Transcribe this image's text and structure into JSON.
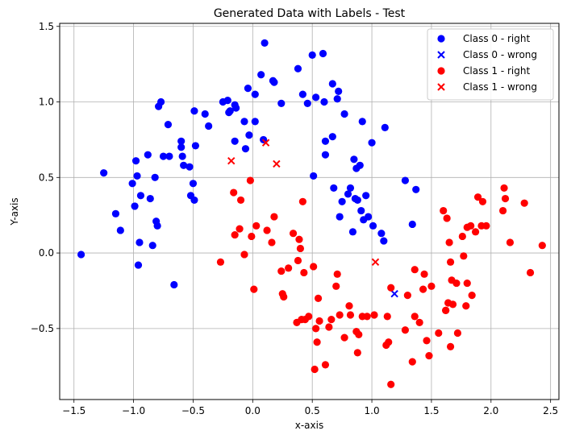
{
  "chart_data": {
    "type": "scatter",
    "title": "Generated Data with Labels - Test",
    "xlabel": "x-axis",
    "ylabel": "Y-axis",
    "xlim": [
      -1.62,
      2.57
    ],
    "ylim": [
      -0.97,
      1.52
    ],
    "xticks": [
      -1.5,
      -1.0,
      -0.5,
      0.0,
      0.5,
      1.0,
      1.5,
      2.0,
      2.5
    ],
    "xtick_labels": [
      "−1.5",
      "−1.0",
      "−0.5",
      "0.0",
      "0.5",
      "1.0",
      "1.5",
      "2.0",
      "2.5"
    ],
    "yticks": [
      -0.5,
      0.0,
      0.5,
      1.0,
      1.5
    ],
    "ytick_labels": [
      "−0.5",
      "0.0",
      "0.5",
      "1.0",
      "1.5"
    ],
    "grid": true,
    "legend_position": "top-right",
    "series": [
      {
        "name": "Class 0 - right",
        "marker": "circle",
        "color": "#0000ff",
        "points": [
          [
            -1.44,
            -0.01
          ],
          [
            -1.25,
            0.53
          ],
          [
            -1.15,
            0.26
          ],
          [
            -1.11,
            0.15
          ],
          [
            -1.01,
            0.46
          ],
          [
            -0.99,
            0.31
          ],
          [
            -0.98,
            0.61
          ],
          [
            -0.97,
            0.51
          ],
          [
            -0.96,
            -0.08
          ],
          [
            -0.95,
            0.07
          ],
          [
            -0.94,
            0.38
          ],
          [
            -0.88,
            0.65
          ],
          [
            -0.86,
            0.36
          ],
          [
            -0.84,
            0.05
          ],
          [
            -0.82,
            0.5
          ],
          [
            -0.81,
            0.21
          ],
          [
            -0.8,
            0.18
          ],
          [
            -0.79,
            0.97
          ],
          [
            -0.77,
            1.0
          ],
          [
            -0.75,
            0.64
          ],
          [
            -0.71,
            0.85
          ],
          [
            -0.7,
            0.64
          ],
          [
            -0.66,
            -0.21
          ],
          [
            -0.6,
            0.74
          ],
          [
            -0.6,
            0.7
          ],
          [
            -0.59,
            0.64
          ],
          [
            -0.58,
            0.58
          ],
          [
            -0.53,
            0.57
          ],
          [
            -0.52,
            0.38
          ],
          [
            -0.5,
            0.46
          ],
          [
            -0.49,
            0.35
          ],
          [
            -0.49,
            0.94
          ],
          [
            -0.48,
            0.71
          ],
          [
            -0.4,
            0.92
          ],
          [
            -0.37,
            0.84
          ],
          [
            -0.25,
            1.0
          ],
          [
            -0.21,
            1.01
          ],
          [
            -0.2,
            0.93
          ],
          [
            -0.19,
            0.94
          ],
          [
            -0.15,
            0.98
          ],
          [
            -0.14,
            0.96
          ],
          [
            -0.15,
            0.74
          ],
          [
            -0.07,
            0.87
          ],
          [
            -0.06,
            0.69
          ],
          [
            -0.04,
            1.09
          ],
          [
            -0.03,
            0.78
          ],
          [
            0.02,
            1.05
          ],
          [
            0.02,
            0.87
          ],
          [
            0.07,
            1.18
          ],
          [
            0.09,
            0.75
          ],
          [
            0.1,
            1.39
          ],
          [
            0.17,
            1.14
          ],
          [
            0.18,
            1.13
          ],
          [
            0.24,
            0.99
          ],
          [
            0.38,
            1.22
          ],
          [
            0.42,
            1.05
          ],
          [
            0.46,
            0.99
          ],
          [
            0.5,
            1.31
          ],
          [
            0.51,
            0.51
          ],
          [
            0.53,
            1.03
          ],
          [
            0.59,
            1.32
          ],
          [
            0.6,
            1.0
          ],
          [
            0.61,
            0.74
          ],
          [
            0.61,
            0.65
          ],
          [
            0.67,
            0.77
          ],
          [
            0.67,
            1.12
          ],
          [
            0.68,
            0.43
          ],
          [
            0.71,
            1.02
          ],
          [
            0.72,
            1.07
          ],
          [
            0.73,
            0.24
          ],
          [
            0.75,
            0.34
          ],
          [
            0.77,
            0.92
          ],
          [
            0.8,
            0.39
          ],
          [
            0.82,
            0.43
          ],
          [
            0.84,
            0.14
          ],
          [
            0.85,
            0.62
          ],
          [
            0.86,
            0.36
          ],
          [
            0.87,
            0.56
          ],
          [
            0.88,
            0.35
          ],
          [
            0.9,
            0.58
          ],
          [
            0.91,
            0.28
          ],
          [
            0.92,
            0.87
          ],
          [
            0.93,
            0.22
          ],
          [
            0.95,
            0.38
          ],
          [
            0.97,
            0.24
          ],
          [
            1.0,
            0.73
          ],
          [
            1.01,
            0.18
          ],
          [
            1.08,
            0.13
          ],
          [
            1.1,
            0.08
          ],
          [
            1.11,
            0.83
          ],
          [
            1.28,
            0.48
          ],
          [
            1.34,
            0.19
          ],
          [
            1.37,
            0.42
          ]
        ]
      },
      {
        "name": "Class 0 - wrong",
        "marker": "x",
        "color": "#0000ff",
        "points": [
          [
            1.19,
            -0.27
          ]
        ]
      },
      {
        "name": "Class 1 - right",
        "marker": "circle",
        "color": "#ff0000",
        "points": [
          [
            -0.27,
            -0.06
          ],
          [
            -0.16,
            0.4
          ],
          [
            -0.15,
            0.12
          ],
          [
            -0.11,
            0.16
          ],
          [
            -0.1,
            0.35
          ],
          [
            -0.07,
            -0.01
          ],
          [
            -0.02,
            0.48
          ],
          [
            -0.01,
            0.11
          ],
          [
            0.01,
            -0.24
          ],
          [
            0.03,
            0.18
          ],
          [
            0.12,
            0.15
          ],
          [
            0.16,
            0.07
          ],
          [
            0.18,
            0.24
          ],
          [
            0.24,
            -0.12
          ],
          [
            0.25,
            -0.27
          ],
          [
            0.26,
            -0.29
          ],
          [
            0.3,
            -0.1
          ],
          [
            0.34,
            0.13
          ],
          [
            0.37,
            -0.46
          ],
          [
            0.38,
            -0.05
          ],
          [
            0.39,
            0.09
          ],
          [
            0.4,
            0.03
          ],
          [
            0.41,
            -0.44
          ],
          [
            0.42,
            0.34
          ],
          [
            0.43,
            -0.13
          ],
          [
            0.44,
            -0.44
          ],
          [
            0.47,
            -0.42
          ],
          [
            0.51,
            -0.09
          ],
          [
            0.52,
            -0.77
          ],
          [
            0.53,
            -0.5
          ],
          [
            0.54,
            -0.59
          ],
          [
            0.55,
            -0.3
          ],
          [
            0.56,
            -0.45
          ],
          [
            0.61,
            -0.74
          ],
          [
            0.64,
            -0.49
          ],
          [
            0.66,
            -0.44
          ],
          [
            0.7,
            -0.22
          ],
          [
            0.71,
            -0.14
          ],
          [
            0.73,
            -0.41
          ],
          [
            0.77,
            -0.56
          ],
          [
            0.81,
            -0.35
          ],
          [
            0.82,
            -0.41
          ],
          [
            0.87,
            -0.52
          ],
          [
            0.88,
            -0.66
          ],
          [
            0.89,
            -0.54
          ],
          [
            0.92,
            -0.42
          ],
          [
            0.96,
            -0.42
          ],
          [
            1.02,
            -0.41
          ],
          [
            1.12,
            -0.61
          ],
          [
            1.13,
            -0.42
          ],
          [
            1.14,
            -0.59
          ],
          [
            1.16,
            -0.23
          ],
          [
            1.16,
            -0.87
          ],
          [
            1.28,
            -0.51
          ],
          [
            1.3,
            -0.28
          ],
          [
            1.34,
            -0.72
          ],
          [
            1.36,
            -0.42
          ],
          [
            1.36,
            -0.11
          ],
          [
            1.4,
            -0.46
          ],
          [
            1.43,
            -0.24
          ],
          [
            1.44,
            -0.14
          ],
          [
            1.46,
            -0.58
          ],
          [
            1.48,
            -0.68
          ],
          [
            1.5,
            -0.22
          ],
          [
            1.56,
            -0.53
          ],
          [
            1.6,
            0.28
          ],
          [
            1.62,
            -0.38
          ],
          [
            1.63,
            0.23
          ],
          [
            1.64,
            -0.33
          ],
          [
            1.65,
            0.07
          ],
          [
            1.66,
            -0.06
          ],
          [
            1.66,
            -0.62
          ],
          [
            1.67,
            -0.18
          ],
          [
            1.68,
            -0.34
          ],
          [
            1.71,
            -0.2
          ],
          [
            1.72,
            -0.53
          ],
          [
            1.76,
            0.11
          ],
          [
            1.77,
            -0.02
          ],
          [
            1.79,
            -0.35
          ],
          [
            1.8,
            -0.2
          ],
          [
            1.8,
            0.17
          ],
          [
            1.83,
            0.18
          ],
          [
            1.84,
            -0.28
          ],
          [
            1.87,
            0.14
          ],
          [
            1.89,
            0.37
          ],
          [
            1.92,
            0.18
          ],
          [
            1.93,
            0.34
          ],
          [
            1.96,
            0.18
          ],
          [
            2.1,
            0.28
          ],
          [
            2.11,
            0.43
          ],
          [
            2.12,
            0.36
          ],
          [
            2.16,
            0.07
          ],
          [
            2.28,
            0.33
          ],
          [
            2.33,
            -0.13
          ],
          [
            2.43,
            0.05
          ],
          [
            1.62,
            -0.38
          ]
        ]
      },
      {
        "name": "Class 1 - wrong",
        "marker": "x",
        "color": "#ff0000",
        "points": [
          [
            -0.18,
            0.61
          ],
          [
            0.11,
            0.73
          ],
          [
            0.2,
            0.59
          ],
          [
            1.03,
            -0.06
          ]
        ]
      }
    ]
  }
}
